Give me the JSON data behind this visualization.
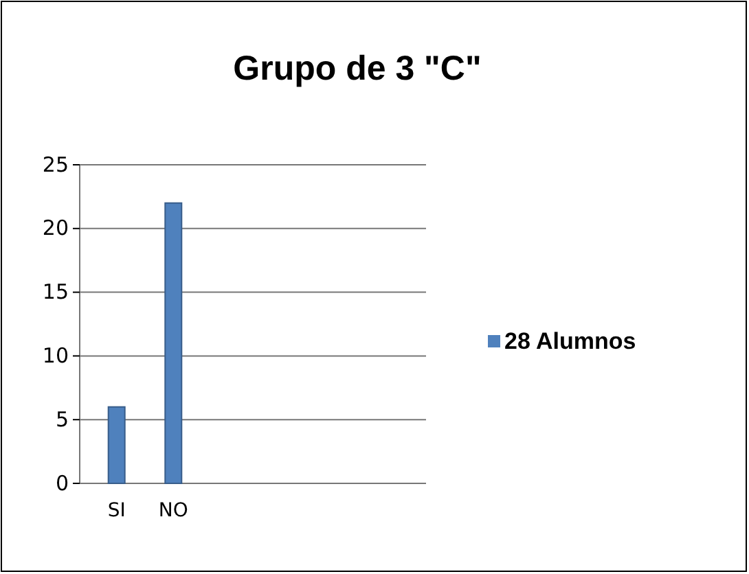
{
  "chart_data": {
    "type": "bar",
    "title": "Grupo de 3 \"C\"",
    "categories": [
      "SI",
      "NO"
    ],
    "series": [
      {
        "name": "28 Alumnos",
        "color": "#4f81bd",
        "values": [
          6,
          22
        ]
      }
    ],
    "ylim": [
      0,
      25
    ],
    "yticks": [
      0,
      5,
      10,
      15,
      20,
      25
    ],
    "grid": "y",
    "legend": "right"
  }
}
